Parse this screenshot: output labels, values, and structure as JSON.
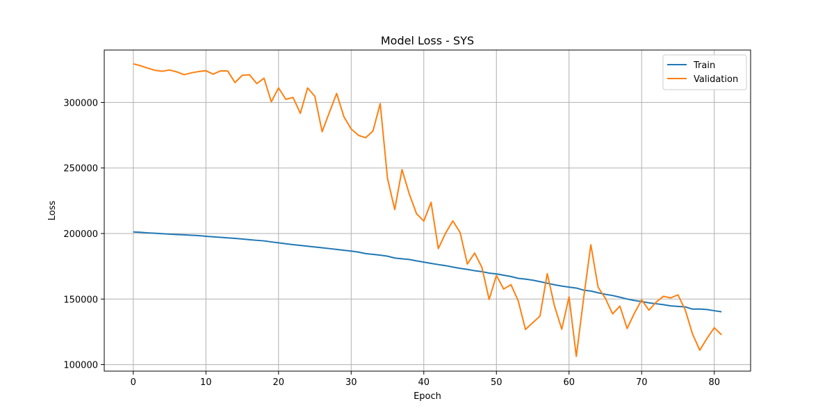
{
  "chart_data": {
    "type": "line",
    "title": "Model Loss - SYS",
    "xlabel": "Epoch",
    "ylabel": "Loss",
    "xlim": [
      -4,
      85
    ],
    "ylim": [
      95000,
      340000
    ],
    "xticks": [
      0,
      10,
      20,
      30,
      40,
      50,
      60,
      70,
      80
    ],
    "yticks": [
      100000,
      150000,
      200000,
      250000,
      300000
    ],
    "grid": true,
    "legend_position": "top-right",
    "x": [
      0,
      1,
      2,
      3,
      4,
      5,
      6,
      7,
      8,
      9,
      10,
      11,
      12,
      13,
      14,
      15,
      16,
      17,
      18,
      19,
      20,
      21,
      22,
      23,
      24,
      25,
      26,
      27,
      28,
      29,
      30,
      31,
      32,
      33,
      34,
      35,
      36,
      37,
      38,
      39,
      40,
      41,
      42,
      43,
      44,
      45,
      46,
      47,
      48,
      49,
      50,
      51,
      52,
      53,
      54,
      55,
      56,
      57,
      58,
      59,
      60,
      61,
      62,
      63,
      64,
      65,
      66,
      67,
      68,
      69,
      70,
      71,
      72,
      73,
      74,
      75,
      76,
      77,
      78,
      79,
      80,
      81
    ],
    "series": [
      {
        "name": "Train",
        "color": "#1f77b4",
        "values": [
          201200,
          200900,
          200500,
          200200,
          199900,
          199500,
          199200,
          199000,
          198700,
          198400,
          197900,
          197500,
          197100,
          196700,
          196300,
          195800,
          195300,
          194800,
          194400,
          193600,
          192900,
          192200,
          191500,
          190900,
          190300,
          189700,
          189100,
          188500,
          187900,
          187200,
          186600,
          185800,
          184700,
          184100,
          183500,
          182700,
          181300,
          180700,
          180200,
          179100,
          178200,
          177200,
          176300,
          175500,
          174400,
          173400,
          172600,
          171600,
          170900,
          169800,
          169200,
          168200,
          167200,
          165800,
          165200,
          164400,
          163300,
          162100,
          160900,
          159900,
          159100,
          158400,
          156800,
          156100,
          154800,
          153600,
          152700,
          151400,
          150000,
          148900,
          148100,
          147100,
          146400,
          145700,
          144800,
          144400,
          144000,
          142300,
          142400,
          142000,
          141100,
          140300
        ]
      },
      {
        "name": "Validation",
        "color": "#ff7f0e",
        "values": [
          329500,
          328000,
          326200,
          324500,
          323800,
          324800,
          323300,
          321200,
          322600,
          323600,
          324200,
          321600,
          324100,
          324000,
          315200,
          320700,
          321200,
          314400,
          318500,
          300500,
          311100,
          302400,
          303800,
          291700,
          311100,
          304700,
          277700,
          292400,
          306900,
          289100,
          279800,
          274900,
          273100,
          278200,
          299100,
          242100,
          218300,
          248800,
          230200,
          215100,
          209500,
          223800,
          188500,
          200300,
          209600,
          200800,
          176700,
          185100,
          174200,
          149700,
          168000,
          157600,
          161000,
          148700,
          126800,
          131900,
          137000,
          169400,
          144600,
          127000,
          151700,
          106300,
          150200,
          191400,
          159100,
          150500,
          138700,
          144600,
          127500,
          139200,
          149400,
          141500,
          147700,
          152100,
          150900,
          153200,
          141700,
          123400,
          111000,
          120000,
          128100,
          122700
        ]
      }
    ]
  }
}
